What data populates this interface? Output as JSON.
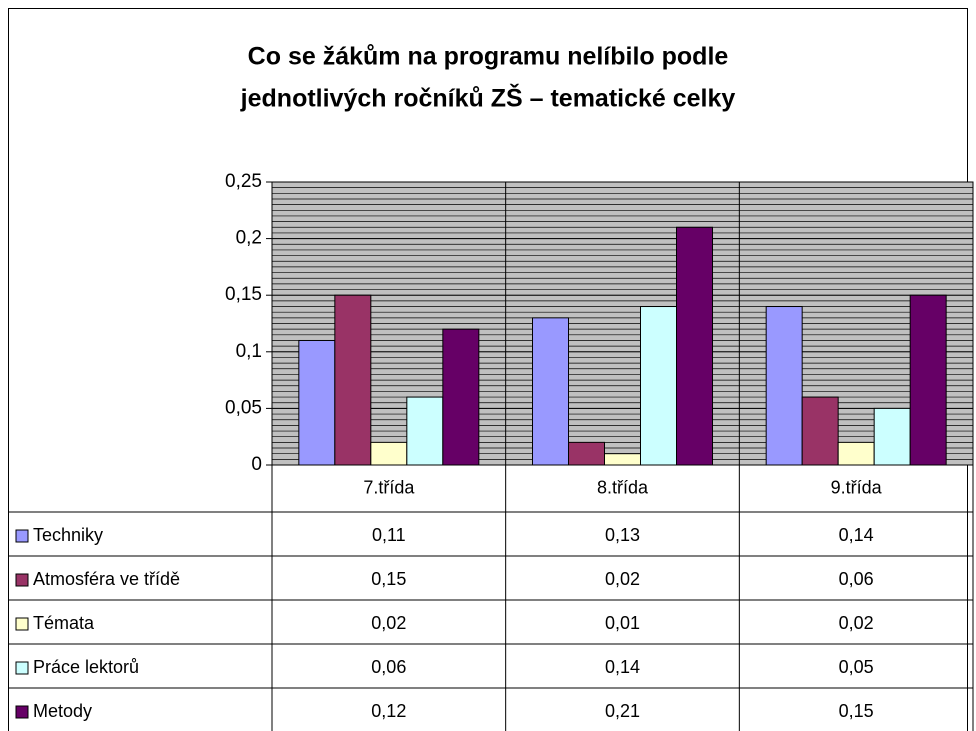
{
  "chart_data": {
    "type": "bar",
    "title": [
      "Co se žákům na programu nelíbilo podle",
      "jednotlivých ročníků ZŠ – tematické celky"
    ],
    "categories": [
      "7.třída",
      "8.třída",
      "9.třída"
    ],
    "series": [
      {
        "name": "Techniky",
        "color": "#9999ff",
        "values": [
          0.11,
          0.13,
          0.14
        ],
        "value_labels": [
          "0,11",
          "0,13",
          "0,14"
        ]
      },
      {
        "name": "Atmosféra ve třídě",
        "color": "#993366",
        "values": [
          0.15,
          0.02,
          0.06
        ],
        "value_labels": [
          "0,15",
          "0,02",
          "0,06"
        ]
      },
      {
        "name": "Témata",
        "color": "#ffffcc",
        "values": [
          0.02,
          0.01,
          0.02
        ],
        "value_labels": [
          "0,02",
          "0,01",
          "0,02"
        ]
      },
      {
        "name": "Práce lektorů",
        "color": "#ccffff",
        "values": [
          0.06,
          0.14,
          0.05
        ],
        "value_labels": [
          "0,06",
          "0,14",
          "0,05"
        ]
      },
      {
        "name": "Metody",
        "color": "#660066",
        "values": [
          0.12,
          0.21,
          0.15
        ],
        "value_labels": [
          "0,12",
          "0,21",
          "0,15"
        ]
      }
    ],
    "ylim": [
      0,
      0.25
    ],
    "yticks": [
      0,
      {
        "value": 0.05,
        "label": "0,05"
      },
      {
        "value": 0.1,
        "label": "0,1"
      },
      {
        "value": 0.15,
        "label": "0,15"
      },
      {
        "value": 0.2,
        "label": "0,2"
      },
      {
        "value": 0.25,
        "label": "0,25"
      }
    ],
    "grid": true,
    "plot_background": "#c0c0c0"
  }
}
